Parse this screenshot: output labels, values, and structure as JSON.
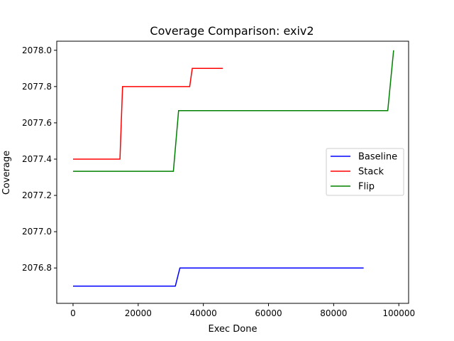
{
  "chart_data": {
    "type": "line",
    "title": "Coverage Comparison: exiv2",
    "xlabel": "Exec Done",
    "ylabel": "Coverage",
    "xlim": [
      -5000,
      103000
    ],
    "ylim": [
      2076.605,
      2078.05
    ],
    "xticks": [
      0,
      20000,
      40000,
      60000,
      80000,
      100000
    ],
    "xtick_labels": [
      "0",
      "20000",
      "40000",
      "60000",
      "80000",
      "100000"
    ],
    "yticks": [
      2076.8,
      2077.0,
      2077.2,
      2077.4,
      2077.6,
      2077.8,
      2078.0
    ],
    "ytick_labels": [
      "2076.8",
      "2077.0",
      "2077.2",
      "2077.4",
      "2077.6",
      "2077.8",
      "2078.0"
    ],
    "grid": false,
    "legend_position": "center-right",
    "series": [
      {
        "name": "Baseline",
        "color": "#0000ff",
        "x": [
          0,
          31400,
          32800,
          89200
        ],
        "y": [
          2076.7,
          2076.7,
          2076.8,
          2076.8
        ]
      },
      {
        "name": "Stack",
        "color": "#ff0000",
        "x": [
          0,
          14400,
          15200,
          35800,
          36600,
          46000
        ],
        "y": [
          2077.4,
          2077.4,
          2077.8,
          2077.8,
          2077.9,
          2077.9
        ]
      },
      {
        "name": "Flip",
        "color": "#008000",
        "x": [
          0,
          30800,
          32400,
          96600,
          98400
        ],
        "y": [
          2077.333,
          2077.333,
          2077.667,
          2077.667,
          2078.0
        ]
      }
    ]
  }
}
